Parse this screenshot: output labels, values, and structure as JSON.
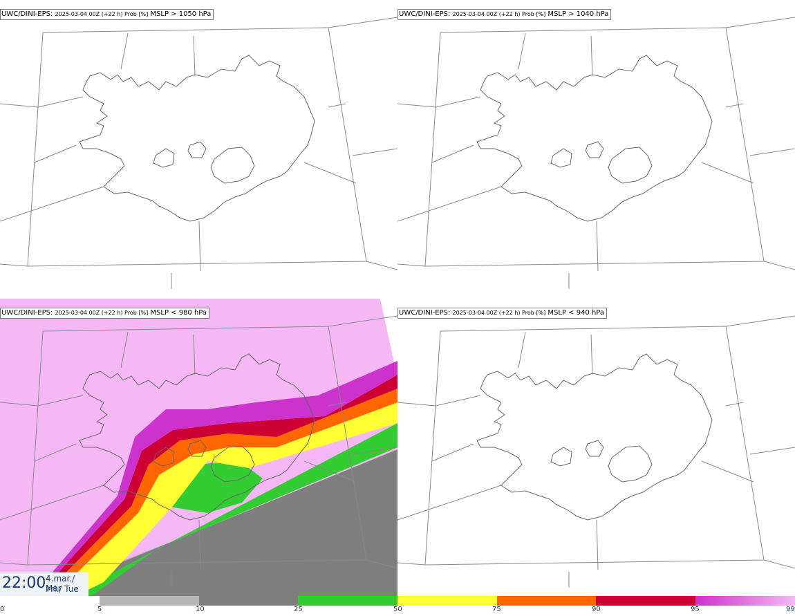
{
  "panels": [
    {
      "id": "tl",
      "model": "UWC/DINI-EPS",
      "meta": "2025-03-04 00Z (+22 h) Prob [%]",
      "threshold": "MSLP > 1050 hPa",
      "filled": false
    },
    {
      "id": "tr",
      "model": "UWC/DINI-EPS",
      "meta": "2025-03-04 00Z (+22 h) Prob [%]",
      "threshold": "MSLP > 1040 hPa",
      "filled": false
    },
    {
      "id": "bl",
      "model": "UWC/DINI-EPS",
      "meta": "2025-03-04 00Z (+22 h) Prob [%]",
      "threshold": "MSLP < 980 hPa",
      "filled": true
    },
    {
      "id": "br",
      "model": "UWC/DINI-EPS",
      "meta": "2025-03-04 00Z (+22 h) Prob [%]",
      "threshold": "MSLP < 940 hPa",
      "filled": false
    }
  ],
  "time": {
    "hour": "22:00",
    "date_line1": "4.mar./ Mar",
    "date_line2": "Þri./ Tue"
  },
  "legend": {
    "ticks": [
      "0",
      "5",
      "10",
      "25",
      "50",
      "75",
      "90",
      "95",
      "99"
    ],
    "colors": [
      "#ffffff",
      "#b5b5b5",
      "#7f7f7f",
      "#33cc33",
      "#ffff33",
      "#ff6600",
      "#cc0033",
      "#cc33cc",
      "#f5b8f5"
    ]
  }
}
